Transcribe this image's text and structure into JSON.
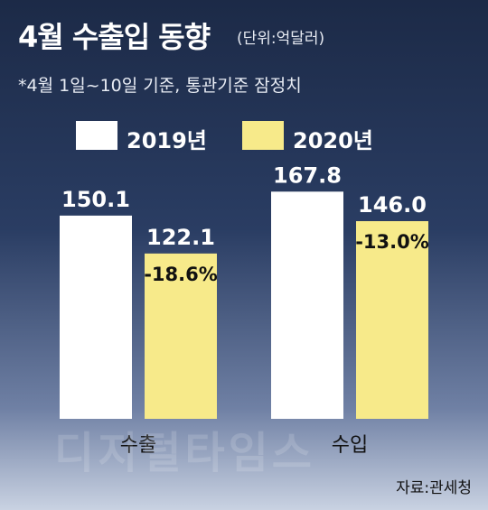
{
  "header": {
    "title": "4월 수출입 동향",
    "unit": "(단위:억달러)",
    "subtitle": "*4월 1일~10일 기준, 통관기준 잠정치"
  },
  "colors": {
    "series_2019": "#ffffff",
    "series_2020": "#f7ea8a"
  },
  "chart_data": {
    "type": "bar",
    "title": "4월 수출입 동향",
    "categories": [
      "수출",
      "수입"
    ],
    "series": [
      {
        "name": "2019년",
        "values": [
          150.1,
          167.8
        ],
        "labels": [
          "150.1",
          "167.8"
        ],
        "color": "#ffffff"
      },
      {
        "name": "2020년",
        "values": [
          122.1,
          146.0
        ],
        "labels": [
          "122.1",
          "146.0"
        ],
        "color": "#f7ea8a"
      }
    ],
    "annotations": [
      "-18.6%",
      "-13.0%"
    ],
    "legend": "top",
    "grid": false
  },
  "watermark": "디지털타임스",
  "source": "자료:관세청"
}
